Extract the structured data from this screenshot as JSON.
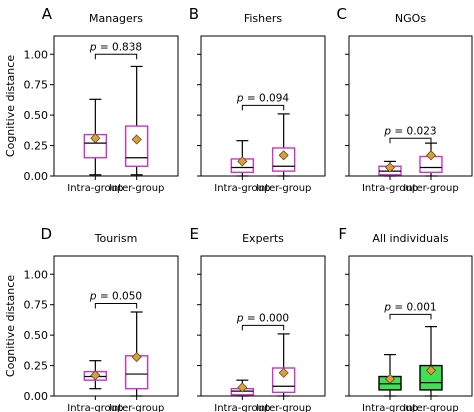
{
  "chart_data": [
    {
      "type": "boxplot",
      "letter": "A",
      "title": "Managers",
      "ylabel": "Cognitive distance",
      "categories": [
        "Intra-group",
        "Inter-group"
      ],
      "ylim": [
        0,
        1.15
      ],
      "yticks": [
        "0.00",
        "0.25",
        "0.50",
        "0.75",
        "1.00"
      ],
      "boxes": [
        {
          "category": "Intra-group",
          "whisker_low": 0.01,
          "q1": 0.15,
          "median": 0.27,
          "q3": 0.34,
          "whisker_high": 0.63,
          "mean": 0.31,
          "fill": "none",
          "edge": "#cc33cc"
        },
        {
          "category": "Inter-group",
          "whisker_low": 0.01,
          "q1": 0.08,
          "median": 0.15,
          "q3": 0.41,
          "whisker_high": 0.9,
          "mean": 0.3,
          "fill": "none",
          "edge": "#cc33cc"
        }
      ],
      "pvalue": {
        "prefix": "p",
        "text": " = 0.838",
        "y": 1.0
      }
    },
    {
      "type": "boxplot",
      "letter": "B",
      "title": "Fishers",
      "ylabel": "",
      "categories": [
        "Intra-group",
        "Inter-group"
      ],
      "ylim": [
        0,
        1.15
      ],
      "yticks": [],
      "boxes": [
        {
          "category": "Intra-group",
          "whisker_low": 0.0,
          "q1": 0.03,
          "median": 0.07,
          "q3": 0.14,
          "whisker_high": 0.29,
          "mean": 0.12,
          "fill": "none",
          "edge": "#cc33cc"
        },
        {
          "category": "Inter-group",
          "whisker_low": 0.0,
          "q1": 0.04,
          "median": 0.08,
          "q3": 0.23,
          "whisker_high": 0.51,
          "mean": 0.17,
          "fill": "none",
          "edge": "#cc33cc"
        }
      ],
      "pvalue": {
        "prefix": "p",
        "text": " = 0.094",
        "y": 0.58
      }
    },
    {
      "type": "boxplot",
      "letter": "C",
      "title": "NGOs",
      "ylabel": "",
      "categories": [
        "Intra-group",
        "Inter-group"
      ],
      "ylim": [
        0,
        1.15
      ],
      "yticks": [],
      "boxes": [
        {
          "category": "Intra-group",
          "whisker_low": 0.0,
          "q1": 0.01,
          "median": 0.04,
          "q3": 0.08,
          "whisker_high": 0.12,
          "mean": 0.07,
          "fill": "none",
          "edge": "#cc33cc"
        },
        {
          "category": "Inter-group",
          "whisker_low": 0.0,
          "q1": 0.03,
          "median": 0.07,
          "q3": 0.16,
          "whisker_high": 0.27,
          "mean": 0.17,
          "fill": "none",
          "edge": "#cc33cc"
        }
      ],
      "pvalue": {
        "prefix": "p",
        "text": " = 0.023",
        "y": 0.31
      }
    },
    {
      "type": "boxplot",
      "letter": "D",
      "title": "Tourism",
      "ylabel": "Cognitive distance",
      "categories": [
        "Intra-group",
        "Inter-group"
      ],
      "ylim": [
        0,
        1.15
      ],
      "yticks": [
        "0.00",
        "0.25",
        "0.50",
        "0.75",
        "1.00"
      ],
      "boxes": [
        {
          "category": "Intra-group",
          "whisker_low": 0.06,
          "q1": 0.13,
          "median": 0.16,
          "q3": 0.2,
          "whisker_high": 0.29,
          "mean": 0.17,
          "fill": "none",
          "edge": "#cc33cc"
        },
        {
          "category": "Inter-group",
          "whisker_low": 0.0,
          "q1": 0.06,
          "median": 0.18,
          "q3": 0.33,
          "whisker_high": 0.69,
          "mean": 0.32,
          "fill": "none",
          "edge": "#cc33cc"
        }
      ],
      "pvalue": {
        "prefix": "p",
        "text": " = 0.050",
        "y": 0.76
      }
    },
    {
      "type": "boxplot",
      "letter": "E",
      "title": "Experts",
      "ylabel": "",
      "categories": [
        "Intra-group",
        "Inter-group"
      ],
      "ylim": [
        0,
        1.15
      ],
      "yticks": [],
      "boxes": [
        {
          "category": "Intra-group",
          "whisker_low": 0.0,
          "q1": 0.01,
          "median": 0.04,
          "q3": 0.06,
          "whisker_high": 0.13,
          "mean": 0.07,
          "fill": "none",
          "edge": "#cc33cc"
        },
        {
          "category": "Inter-group",
          "whisker_low": 0.0,
          "q1": 0.03,
          "median": 0.08,
          "q3": 0.23,
          "whisker_high": 0.51,
          "mean": 0.19,
          "fill": "none",
          "edge": "#cc33cc"
        }
      ],
      "pvalue": {
        "prefix": "p",
        "text": " = 0.000",
        "y": 0.58
      }
    },
    {
      "type": "boxplot",
      "letter": "F",
      "title": "All individuals",
      "ylabel": "",
      "categories": [
        "Intra-group",
        "Inter-group"
      ],
      "ylim": [
        0,
        1.15
      ],
      "yticks": [],
      "boxes": [
        {
          "category": "Intra-group",
          "whisker_low": 0.0,
          "q1": 0.05,
          "median": 0.1,
          "q3": 0.16,
          "whisker_high": 0.34,
          "mean": 0.14,
          "fill": "#44dd55",
          "edge": "#000000"
        },
        {
          "category": "Inter-group",
          "whisker_low": 0.0,
          "q1": 0.05,
          "median": 0.11,
          "q3": 0.25,
          "whisker_high": 0.57,
          "mean": 0.21,
          "fill": "#44dd55",
          "edge": "#000000"
        }
      ],
      "pvalue": {
        "prefix": "p",
        "text": " = 0.001",
        "y": 0.67
      }
    }
  ],
  "colors": {
    "mean_marker_fill": "#d4a040",
    "mean_marker_edge": "#6b4a10"
  }
}
